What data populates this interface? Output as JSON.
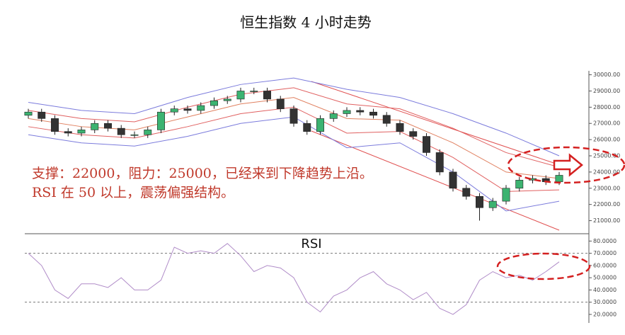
{
  "chart_data": [
    {
      "type": "candlestick",
      "title": "恒生指数  4 小时走势",
      "annotations": [
        "支撑：22000，阻力：25000，已经来到下降趋势上沿。",
        "RSI 在 50 以上，震荡偏强结构。"
      ],
      "xlim": [
        0,
        40
      ],
      "ylim": [
        20500,
        30200
      ],
      "yticks": [
        {
          "value": 21000,
          "label": "21000.00"
        },
        {
          "value": 22000,
          "label": "22000.00"
        },
        {
          "value": 23000,
          "label": "23000.00"
        },
        {
          "value": 24000,
          "label": "24000.00"
        },
        {
          "value": 25000,
          "label": "25000.00"
        },
        {
          "value": 26000,
          "label": "26000.00"
        },
        {
          "value": 27000,
          "label": "27000.00"
        },
        {
          "value": 28000,
          "label": "28000.00"
        },
        {
          "value": 29000,
          "label": "29000.00"
        },
        {
          "value": 30000,
          "label": "30000.00"
        }
      ],
      "up_color": "#3cb371",
      "down_color": "#333333",
      "open": [
        27500,
        27700,
        27300,
        26500,
        26400,
        26600,
        27000,
        26700,
        26300,
        26300,
        26600,
        27700,
        27900,
        27800,
        28100,
        28400,
        28500,
        29000,
        29000,
        28500,
        27900,
        27000,
        26500,
        27300,
        27600,
        27800,
        27700,
        27500,
        27000,
        26500,
        26200,
        25200,
        24000,
        23000,
        22500,
        21800,
        22200,
        23000,
        23500,
        23600,
        23400
      ],
      "high": [
        27900,
        27900,
        27500,
        26700,
        26800,
        27200,
        27200,
        26900,
        26500,
        26800,
        27900,
        28100,
        28100,
        28300,
        28600,
        28700,
        29200,
        29200,
        29200,
        28700,
        28100,
        27200,
        27500,
        27800,
        28000,
        28000,
        27900,
        27700,
        27200,
        26700,
        26400,
        25400,
        24200,
        23200,
        22700,
        22400,
        23200,
        23700,
        23800,
        23800,
        24000
      ],
      "low": [
        27300,
        27100,
        26300,
        26200,
        26200,
        26400,
        26500,
        26100,
        26100,
        26100,
        26400,
        27500,
        27600,
        27600,
        27900,
        28200,
        28300,
        28800,
        28300,
        27700,
        26800,
        26300,
        26300,
        27100,
        27400,
        27500,
        27300,
        26800,
        26300,
        26000,
        25000,
        23800,
        22800,
        22300,
        21000,
        21600,
        22000,
        22800,
        23300,
        23200,
        23200
      ],
      "close": [
        27700,
        27300,
        26500,
        26400,
        26600,
        27000,
        26700,
        26300,
        26300,
        26600,
        27700,
        27900,
        27800,
        28100,
        28400,
        28500,
        29000,
        29000,
        28500,
        27900,
        27000,
        26500,
        27300,
        27600,
        27800,
        27700,
        27500,
        27000,
        26500,
        26200,
        25200,
        24000,
        23000,
        22500,
        21800,
        22200,
        23000,
        23500,
        23600,
        23400,
        23800
      ],
      "bands": [
        {
          "color": "#7b7bdc",
          "x": [
            0,
            4,
            8,
            12,
            16,
            20,
            24,
            28,
            32,
            36,
            40
          ],
          "values": [
            28300,
            27800,
            27600,
            28600,
            29400,
            29800,
            29100,
            28600,
            27600,
            26400,
            25000
          ]
        },
        {
          "color": "#e06060",
          "x": [
            0,
            4,
            8,
            12,
            16,
            20,
            24,
            28,
            32,
            36,
            40
          ],
          "values": [
            27800,
            27300,
            27100,
            28000,
            28800,
            29200,
            28200,
            27900,
            26700,
            25200,
            24300
          ]
        },
        {
          "color": "#e08060",
          "x": [
            0,
            4,
            8,
            12,
            16,
            20,
            24,
            28,
            32,
            36,
            40
          ],
          "values": [
            27300,
            26800,
            26600,
            27400,
            28200,
            28600,
            27300,
            27200,
            25800,
            24000,
            23600
          ]
        },
        {
          "color": "#e06060",
          "x": [
            0,
            4,
            8,
            12,
            16,
            20,
            24,
            28,
            32,
            36,
            40
          ],
          "values": [
            26800,
            26300,
            26100,
            26800,
            27600,
            28000,
            26400,
            26500,
            24900,
            22800,
            22900
          ]
        },
        {
          "color": "#7b7bdc",
          "x": [
            0,
            4,
            8,
            12,
            16,
            20,
            24,
            28,
            32,
            36,
            40
          ],
          "values": [
            26300,
            25800,
            25600,
            26200,
            27000,
            27400,
            25500,
            25800,
            24000,
            21600,
            22200
          ]
        }
      ]
    },
    {
      "type": "line",
      "title": "RSI",
      "xlim": [
        0,
        40
      ],
      "ylim": [
        13,
        86
      ],
      "yticks": [
        {
          "value": 20,
          "label": "20.0000"
        },
        {
          "value": 30,
          "label": "30.0000"
        },
        {
          "value": 40,
          "label": "40.0000"
        },
        {
          "value": 50,
          "label": "50.0000"
        },
        {
          "value": 60,
          "label": "60.0000"
        },
        {
          "value": 70,
          "label": "70.0000"
        },
        {
          "value": 80,
          "label": "80.0000"
        }
      ],
      "reference_lines": [
        70,
        30
      ],
      "color": "#b08cc8",
      "x": [
        0,
        1,
        2,
        3,
        4,
        5,
        6,
        7,
        8,
        9,
        10,
        11,
        12,
        13,
        14,
        15,
        16,
        17,
        18,
        19,
        20,
        21,
        22,
        23,
        24,
        25,
        26,
        27,
        28,
        29,
        30,
        31,
        32,
        33,
        34,
        35,
        36,
        37,
        38,
        39,
        40
      ],
      "values": [
        70,
        60,
        40,
        33,
        45,
        45,
        42,
        50,
        40,
        40,
        48,
        75,
        70,
        72,
        70,
        78,
        68,
        55,
        60,
        58,
        50,
        30,
        22,
        35,
        40,
        50,
        55,
        45,
        40,
        32,
        38,
        25,
        20,
        28,
        48,
        55,
        50,
        52,
        48,
        55,
        63
      ]
    }
  ]
}
